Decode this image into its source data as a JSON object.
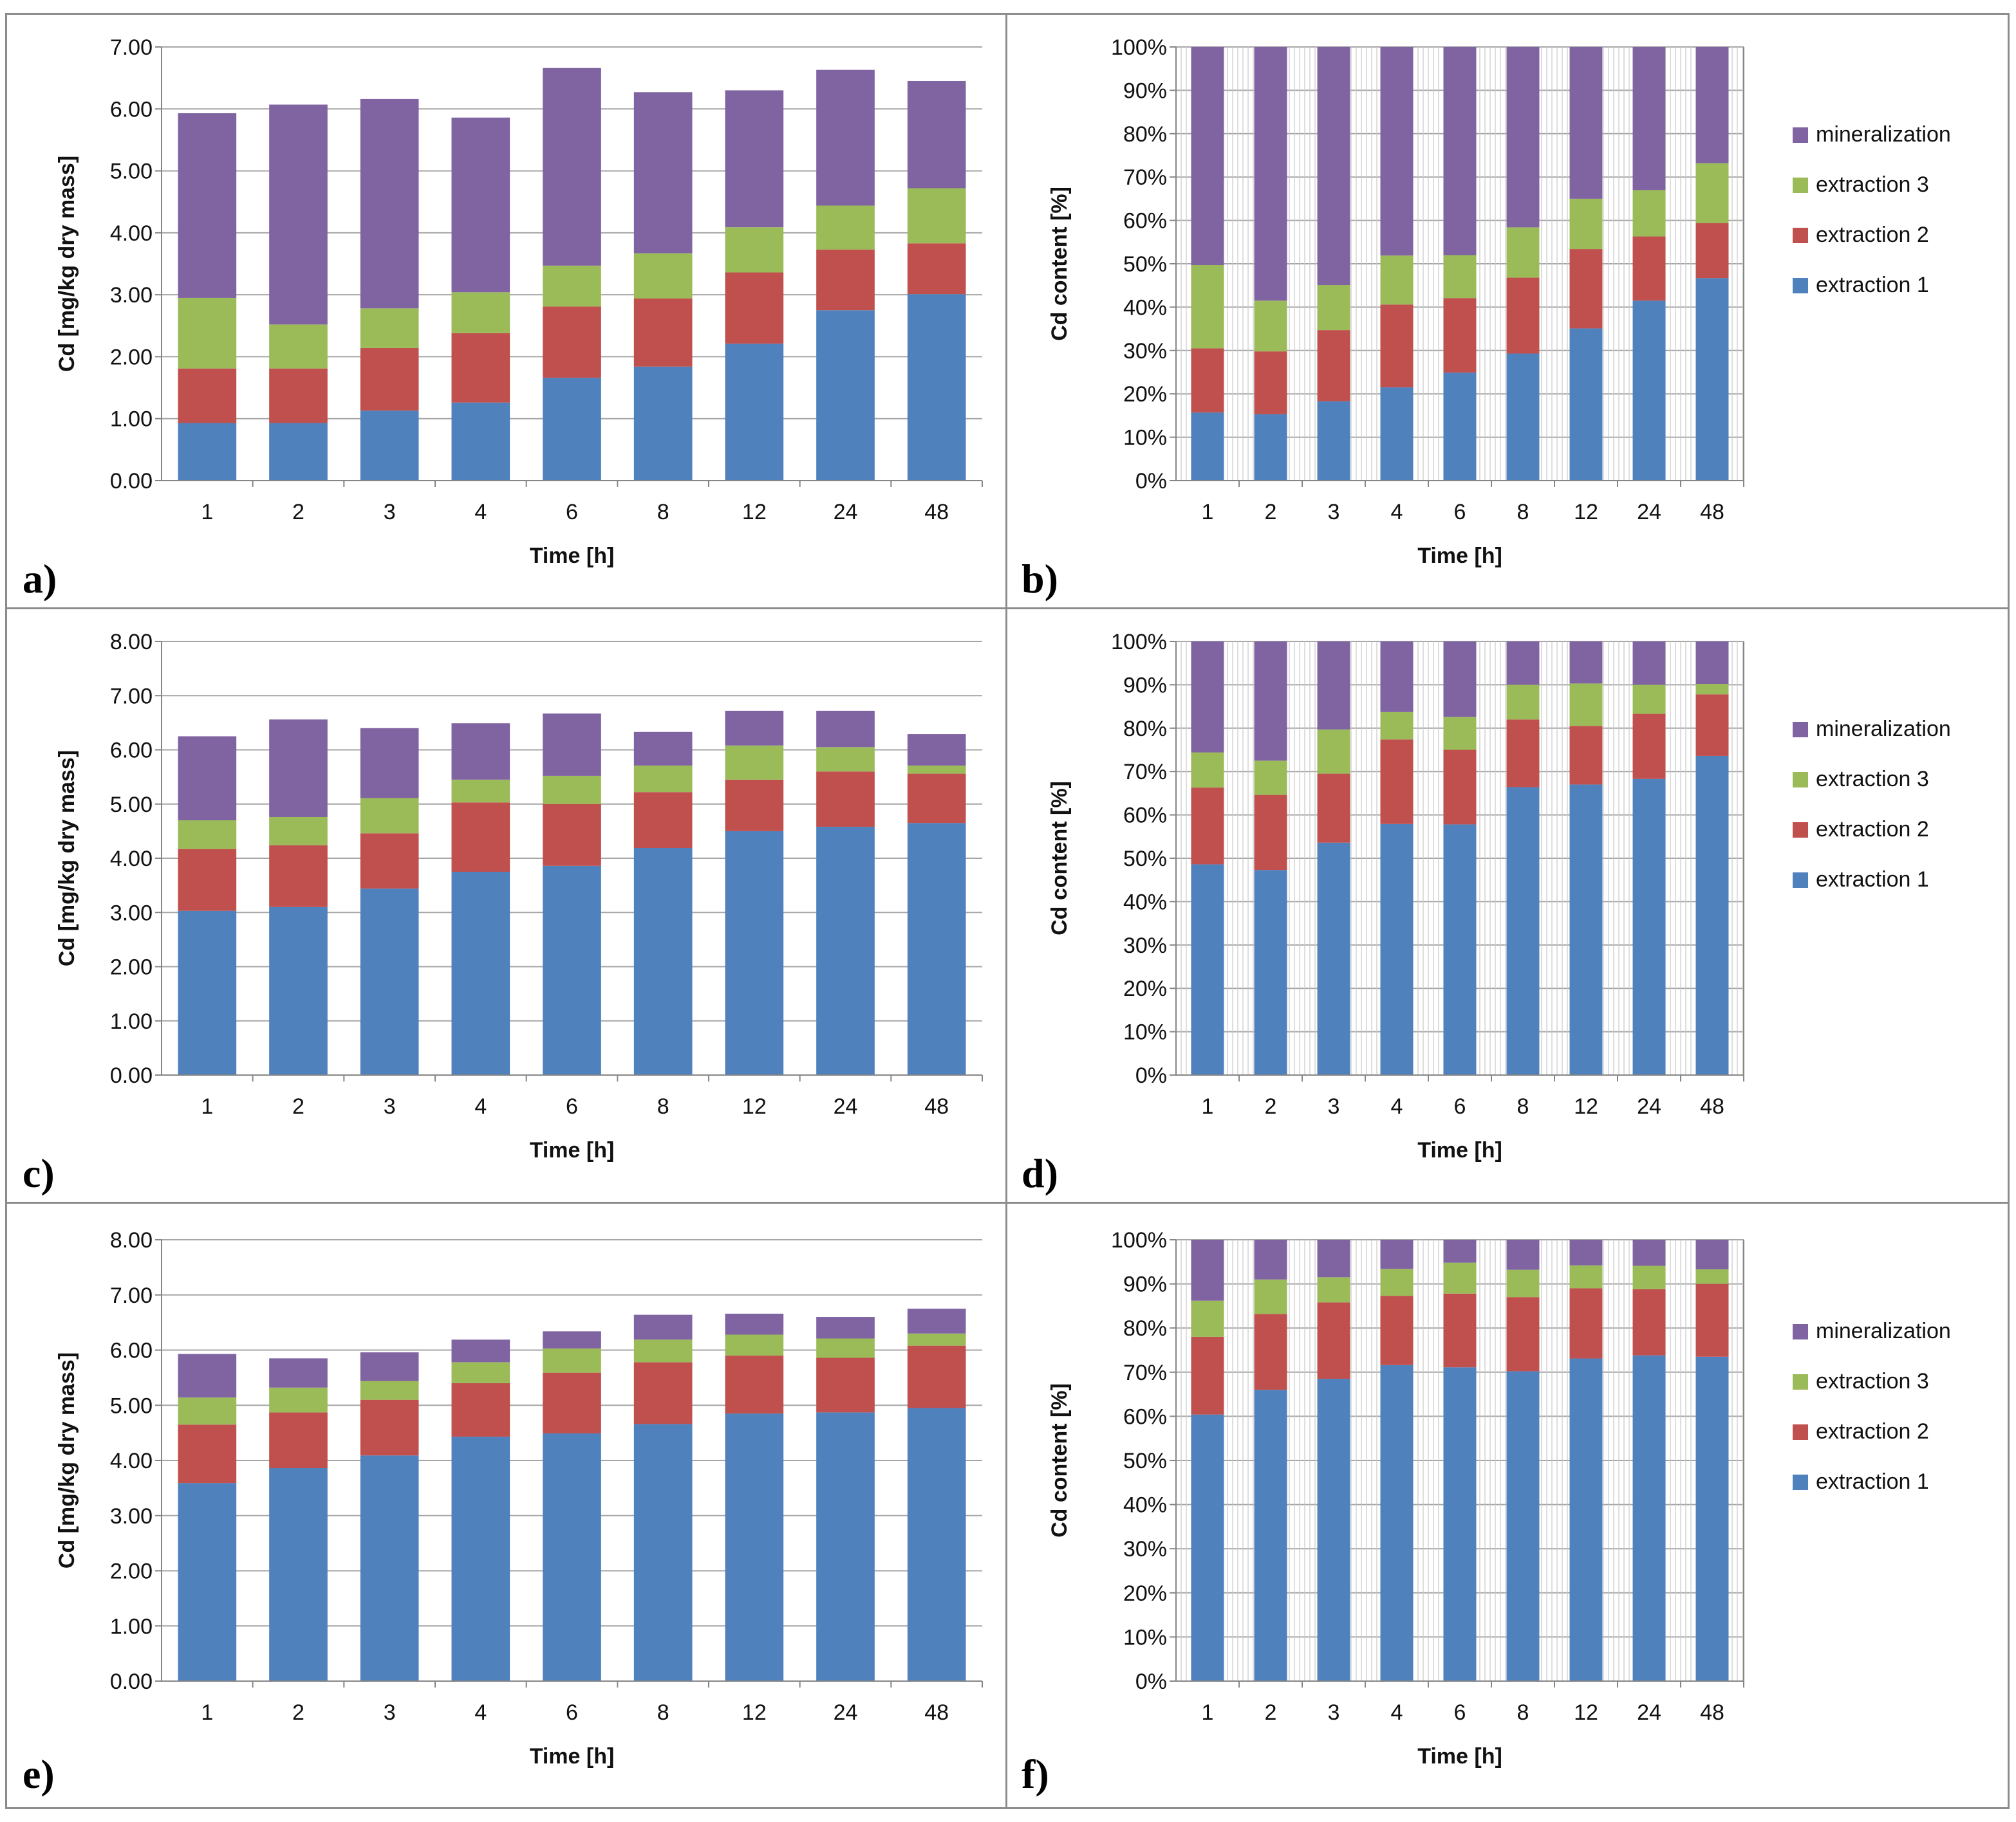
{
  "series_names": [
    "extraction 1",
    "extraction 2",
    "extraction 3",
    "mineralization"
  ],
  "colors": {
    "extraction 1": "#4F81BD",
    "extraction 2": "#C0504D",
    "extraction 3": "#9BBB59",
    "mineralization": "#8064A2",
    "axis": "#868686",
    "grid": "#A6A6A6"
  },
  "chart_data": [
    {
      "panel": "a)",
      "type": "bar",
      "stacked": true,
      "categories": [
        "1",
        "2",
        "3",
        "4",
        "6",
        "8",
        "12",
        "24",
        "48"
      ],
      "xlabel": "Time [h]",
      "ylabel": "Cd [mg/kg dry mass]",
      "ylim": [
        0,
        7
      ],
      "yticks": [
        "0.00",
        "1.00",
        "2.00",
        "3.00",
        "4.00",
        "5.00",
        "6.00",
        "7.00"
      ],
      "series": [
        {
          "name": "extraction 1",
          "values": [
            0.93,
            0.93,
            1.13,
            1.26,
            1.66,
            1.84,
            2.21,
            2.75,
            3.01
          ]
        },
        {
          "name": "extraction 2",
          "values": [
            0.88,
            0.88,
            1.01,
            1.12,
            1.15,
            1.1,
            1.15,
            0.98,
            0.82
          ]
        },
        {
          "name": "extraction 3",
          "values": [
            1.14,
            0.71,
            0.64,
            0.66,
            0.66,
            0.73,
            0.73,
            0.71,
            0.89
          ]
        },
        {
          "name": "mineralization",
          "values": [
            2.98,
            3.55,
            3.38,
            2.82,
            3.19,
            2.6,
            2.21,
            2.19,
            1.73
          ]
        }
      ]
    },
    {
      "panel": "b)",
      "type": "bar",
      "stacked": true,
      "percent": true,
      "categories": [
        "1",
        "2",
        "3",
        "4",
        "6",
        "8",
        "12",
        "24",
        "48"
      ],
      "xlabel": "Time [h]",
      "ylabel": "Cd content [%]",
      "ylim": [
        0,
        100
      ],
      "yticks": [
        "0%",
        "10%",
        "20%",
        "30%",
        "40%",
        "50%",
        "60%",
        "70%",
        "80%",
        "90%",
        "100%"
      ],
      "series": [
        {
          "name": "extraction 1",
          "values": [
            15.7,
            15.3,
            18.3,
            21.5,
            24.9,
            29.3,
            35.1,
            41.5,
            46.7
          ]
        },
        {
          "name": "extraction 2",
          "values": [
            14.8,
            14.5,
            16.4,
            19.1,
            17.2,
            17.5,
            18.3,
            14.8,
            12.7
          ]
        },
        {
          "name": "extraction 3",
          "values": [
            19.2,
            11.7,
            10.4,
            11.3,
            9.9,
            11.6,
            11.6,
            10.7,
            13.8
          ]
        },
        {
          "name": "mineralization",
          "values": [
            50.3,
            58.5,
            54.9,
            48.1,
            48.0,
            41.6,
            35.0,
            33.0,
            26.8
          ]
        }
      ]
    },
    {
      "panel": "c)",
      "type": "bar",
      "stacked": true,
      "categories": [
        "1",
        "2",
        "3",
        "4",
        "6",
        "8",
        "12",
        "24",
        "48"
      ],
      "xlabel": "Time [h]",
      "ylabel": "Cd [mg/kg dry mass]",
      "ylim": [
        0,
        8
      ],
      "yticks": [
        "0.00",
        "1.00",
        "2.00",
        "3.00",
        "4.00",
        "5.00",
        "6.00",
        "7.00",
        "8.00"
      ],
      "series": [
        {
          "name": "extraction 1",
          "values": [
            3.03,
            3.1,
            3.44,
            3.75,
            3.86,
            4.19,
            4.5,
            4.58,
            4.65
          ]
        },
        {
          "name": "extraction 2",
          "values": [
            1.14,
            1.14,
            1.02,
            1.28,
            1.14,
            1.03,
            0.95,
            1.02,
            0.91
          ]
        },
        {
          "name": "extraction 3",
          "values": [
            0.53,
            0.52,
            0.65,
            0.42,
            0.52,
            0.49,
            0.63,
            0.45,
            0.15
          ]
        },
        {
          "name": "mineralization",
          "values": [
            1.55,
            1.8,
            1.29,
            1.04,
            1.15,
            0.62,
            0.64,
            0.67,
            0.58
          ]
        }
      ]
    },
    {
      "panel": "d)",
      "type": "bar",
      "stacked": true,
      "percent": true,
      "categories": [
        "1",
        "2",
        "3",
        "4",
        "6",
        "8",
        "12",
        "24",
        "48"
      ],
      "xlabel": "Time [h]",
      "ylabel": "Cd content [%]",
      "ylim": [
        0,
        100
      ],
      "yticks": [
        "0%",
        "10%",
        "20%",
        "30%",
        "40%",
        "50%",
        "60%",
        "70%",
        "80%",
        "90%",
        "100%"
      ],
      "series": [
        {
          "name": "extraction 1",
          "values": [
            48.6,
            47.3,
            53.6,
            57.9,
            57.8,
            66.4,
            67.0,
            68.3,
            73.6
          ]
        },
        {
          "name": "extraction 2",
          "values": [
            17.7,
            17.3,
            15.9,
            19.5,
            17.2,
            15.6,
            13.5,
            15.0,
            14.2
          ]
        },
        {
          "name": "extraction 3",
          "values": [
            8.1,
            7.9,
            10.2,
            6.3,
            7.6,
            8.0,
            9.8,
            6.7,
            2.4
          ]
        },
        {
          "name": "mineralization",
          "values": [
            25.6,
            27.5,
            20.3,
            16.3,
            17.4,
            10.0,
            9.7,
            10.0,
            9.8
          ]
        }
      ]
    },
    {
      "panel": "e)",
      "type": "bar",
      "stacked": true,
      "categories": [
        "1",
        "2",
        "3",
        "4",
        "6",
        "8",
        "12",
        "24",
        "48"
      ],
      "xlabel": "Time [h]",
      "ylabel": "Cd [mg/kg dry mass]",
      "ylim": [
        0,
        8
      ],
      "yticks": [
        "0.00",
        "1.00",
        "2.00",
        "3.00",
        "4.00",
        "5.00",
        "6.00",
        "7.00",
        "8.00"
      ],
      "series": [
        {
          "name": "extraction 1",
          "values": [
            3.59,
            3.86,
            4.09,
            4.43,
            4.49,
            4.66,
            4.85,
            4.87,
            4.95
          ]
        },
        {
          "name": "extraction 2",
          "values": [
            1.06,
            1.01,
            1.01,
            0.97,
            1.1,
            1.12,
            1.05,
            0.99,
            1.13
          ]
        },
        {
          "name": "extraction 3",
          "values": [
            0.49,
            0.45,
            0.34,
            0.38,
            0.44,
            0.41,
            0.38,
            0.35,
            0.22
          ]
        },
        {
          "name": "mineralization",
          "values": [
            0.79,
            0.53,
            0.52,
            0.41,
            0.31,
            0.45,
            0.38,
            0.39,
            0.45
          ]
        }
      ]
    },
    {
      "panel": "f)",
      "type": "bar",
      "stacked": true,
      "percent": true,
      "categories": [
        "1",
        "2",
        "3",
        "4",
        "6",
        "8",
        "12",
        "24",
        "48"
      ],
      "xlabel": "Time [h]",
      "ylabel": "Cd content [%]",
      "ylim": [
        0,
        100
      ],
      "yticks": [
        "0%",
        "10%",
        "20%",
        "30%",
        "40%",
        "50%",
        "60%",
        "70%",
        "80%",
        "90%",
        "100%"
      ],
      "series": [
        {
          "name": "extraction 1",
          "values": [
            60.4,
            66.0,
            68.5,
            71.6,
            71.1,
            70.2,
            73.1,
            73.8,
            73.5
          ]
        },
        {
          "name": "extraction 2",
          "values": [
            17.6,
            17.2,
            17.3,
            15.7,
            16.7,
            16.8,
            15.9,
            15.0,
            16.5
          ]
        },
        {
          "name": "extraction 3",
          "values": [
            8.2,
            7.8,
            5.7,
            6.1,
            7.0,
            6.2,
            5.2,
            5.3,
            3.3
          ]
        },
        {
          "name": "mineralization",
          "values": [
            13.8,
            9.0,
            8.5,
            6.6,
            5.2,
            6.8,
            5.8,
            5.9,
            6.7
          ]
        }
      ]
    }
  ]
}
